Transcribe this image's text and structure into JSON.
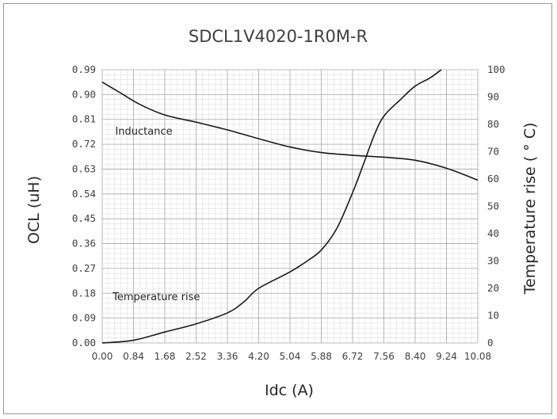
{
  "chart_data": {
    "type": "line",
    "title": "SDCL1V4020-1R0M-R",
    "xlabel": "Idc (A)",
    "ylabel": "OCL (uH)",
    "y2label": "Temperature rise ( ° C)",
    "xlim": [
      0,
      10.08
    ],
    "ylim": [
      0,
      0.99
    ],
    "y2lim": [
      0,
      100
    ],
    "x_ticks": [
      "0.00",
      "0.84",
      "1.68",
      "2.52",
      "3.36",
      "4.20",
      "5.04",
      "5.88",
      "6.72",
      "7.56",
      "8.40",
      "9.24",
      "10.08"
    ],
    "y_ticks": [
      "0.00",
      "0.09",
      "0.18",
      "0.27",
      "0.36",
      "0.45",
      "0.54",
      "0.63",
      "0.72",
      "0.81",
      "0.90",
      "0.99"
    ],
    "y2_ticks": [
      "0",
      "10",
      "20",
      "30",
      "40",
      "50",
      "60",
      "70",
      "80",
      "90",
      "100"
    ],
    "grid": true,
    "series": [
      {
        "name": "Inductance",
        "axis": "left",
        "x": [
          0,
          0.5,
          1.0,
          1.68,
          2.52,
          3.36,
          4.2,
          5.04,
          5.88,
          6.72,
          7.56,
          8.4,
          9.24,
          10.08
        ],
        "y": [
          0.945,
          0.905,
          0.865,
          0.826,
          0.8,
          0.772,
          0.74,
          0.71,
          0.69,
          0.68,
          0.673,
          0.662,
          0.633,
          0.59
        ]
      },
      {
        "name": "Temperature rise",
        "axis": "right",
        "x": [
          0,
          0.84,
          1.68,
          2.52,
          3.36,
          3.8,
          4.2,
          5.04,
          5.5,
          5.88,
          6.3,
          6.72,
          7.0,
          7.3,
          7.56,
          8.0,
          8.4,
          8.8,
          9.1
        ],
        "y": [
          0,
          1,
          4,
          7,
          11,
          15,
          20,
          26,
          30,
          34,
          42,
          55,
          65,
          76,
          83,
          89,
          94,
          97,
          100
        ]
      }
    ],
    "annotations": [
      {
        "text": "Inductance",
        "x": 0.35,
        "y": 0.755
      },
      {
        "text": "Temperature rise",
        "x": 0.28,
        "y": 0.155
      }
    ]
  }
}
